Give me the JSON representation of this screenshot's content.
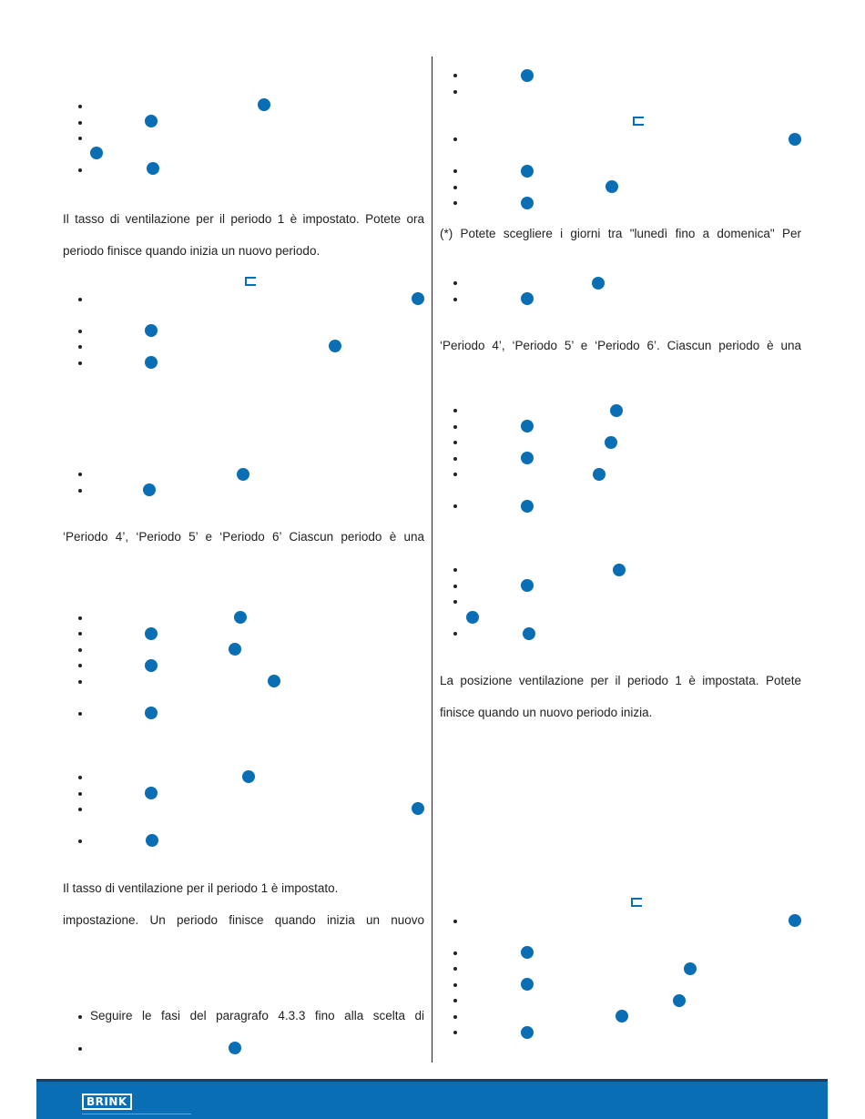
{
  "left_column": {
    "para_1": "Il tasso di ventilazione per il periodo 1 è impostato. Potete ora",
    "para_2": "periodo finisce quando inizia un nuovo periodo.",
    "para_3": "‘Periodo 4’, ‘Periodo 5’ e ‘Periodo 6’ Ciascun periodo è una",
    "para_4": "Il tasso di ventilazione per il periodo 1 è impostato.",
    "para_5": "impostazione. Un periodo finisce quando inizia un nuovo",
    "bullet_step": "Seguire le fasi del paragrafo 4.3.3 fino alla scelta di"
  },
  "right_column": {
    "para_1": "(*) Potete scegliere i giorni tra \"lunedì fino a domenica\"  Per",
    "para_2": "‘Periodo 4’, ‘Periodo 5’ e ‘Periodo 6’. Ciascun periodo è una",
    "para_3": "La posizione ventilazione per il periodo 1 è impostata. Potete",
    "para_4": "finisce quando un nuovo periodo inizia."
  },
  "footer": {
    "logo_text": "BRINK"
  },
  "colors": {
    "accent": "#0a6eb4",
    "footer_border": "#1d3d63",
    "text": "#222222"
  }
}
